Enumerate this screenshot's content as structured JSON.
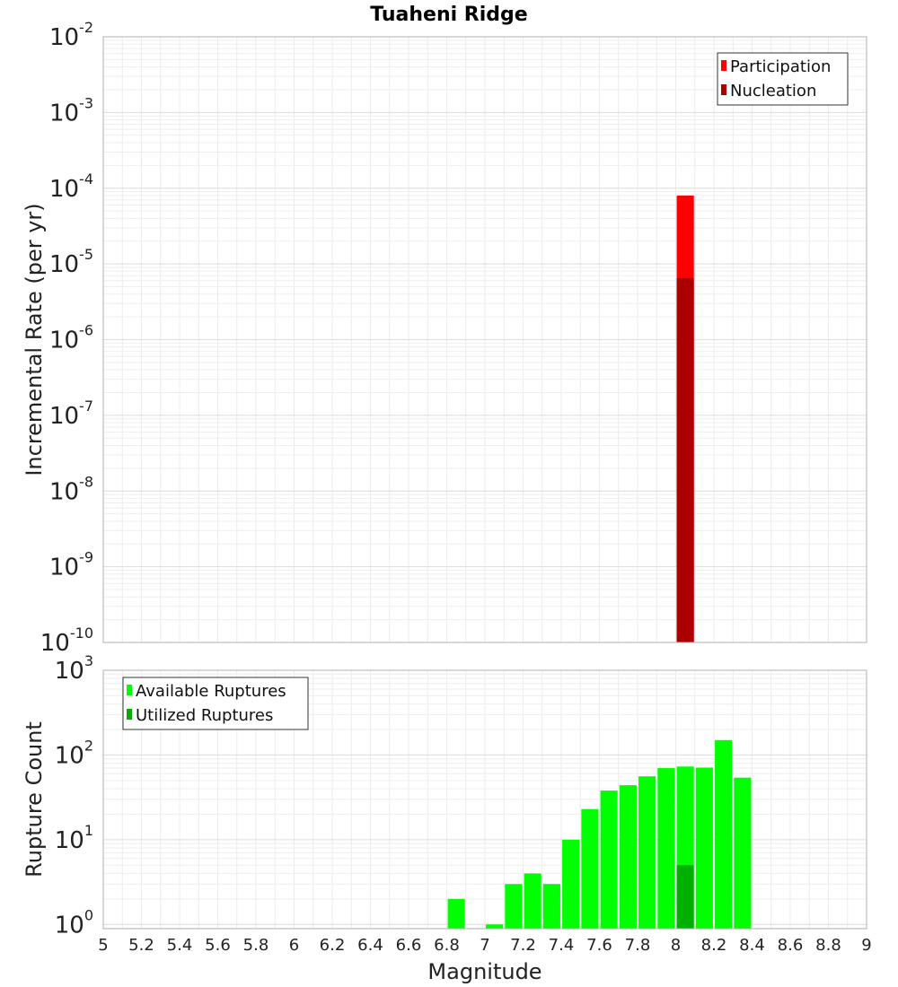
{
  "chart_data": {
    "title": "Tuaheni Ridge",
    "xlabel": "Magnitude",
    "xlim": [
      5,
      9
    ],
    "x_tick_labels": [
      "5",
      "5.2",
      "5.4",
      "5.6",
      "5.8",
      "6",
      "6.2",
      "6.4",
      "6.6",
      "6.8",
      "7",
      "7.2",
      "7.4",
      "7.6",
      "7.8",
      "8",
      "8.2",
      "8.4",
      "8.6",
      "8.8",
      "9"
    ],
    "panels": [
      {
        "type": "bar",
        "scale": "log",
        "ylabel": "Incremental Rate (per yr)",
        "ylim_exponents": [
          -10,
          -2
        ],
        "y_tick_exponents": [
          "-10",
          "-9",
          "-8",
          "-7",
          "-6",
          "-5",
          "-4",
          "-3",
          "-2"
        ],
        "tick_base": "10",
        "grid": true,
        "legend_position": "top-right",
        "series": [
          {
            "name": "Participation",
            "color": "#ff0000",
            "x": [
              8.05
            ],
            "values": [
              8e-05
            ]
          },
          {
            "name": "Nucleation",
            "color": "#aa0000",
            "x": [
              8.05
            ],
            "values": [
              6.5e-06
            ]
          }
        ]
      },
      {
        "type": "bar",
        "scale": "log",
        "ylabel": "Rupture Count",
        "ylim_exponents": [
          -0.05,
          3
        ],
        "y_tick_exponents": [
          "0",
          "1",
          "2",
          "3"
        ],
        "tick_base": "10",
        "grid": true,
        "legend_position": "top-left",
        "series": [
          {
            "name": "Available Ruptures",
            "color": "#00ff00",
            "x": [
              6.85,
              7.05,
              7.15,
              7.25,
              7.35,
              7.45,
              7.55,
              7.65,
              7.75,
              7.85,
              7.95,
              8.05,
              8.15,
              8.25,
              8.35
            ],
            "values": [
              2,
              1,
              3,
              4,
              3,
              10,
              23,
              38,
              44,
              56,
              70,
              73,
              71,
              150,
              54
            ]
          },
          {
            "name": "Utilized Ruptures",
            "color": "#00b000",
            "x": [
              8.05
            ],
            "values": [
              5
            ]
          }
        ]
      }
    ]
  }
}
